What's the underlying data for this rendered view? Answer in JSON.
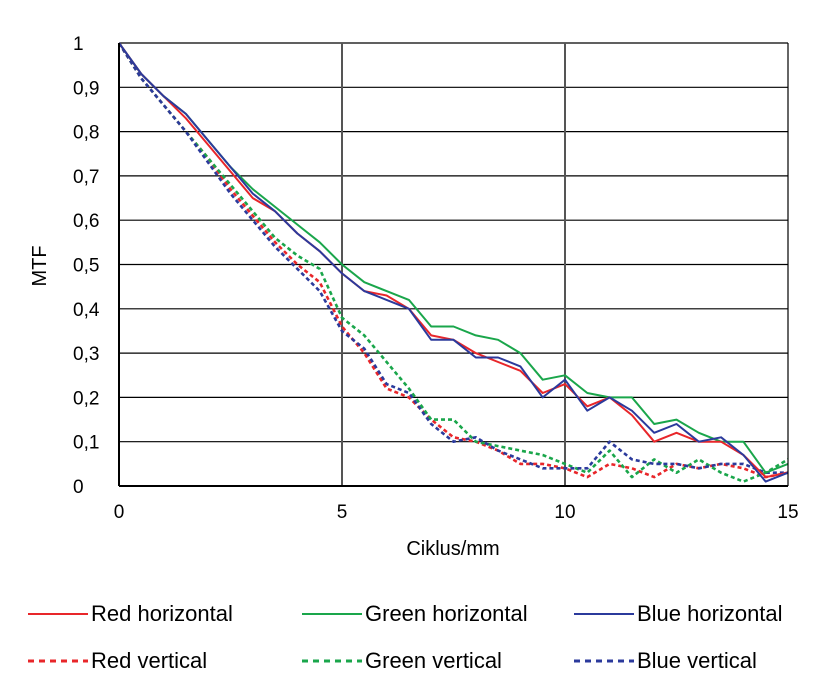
{
  "chart_data": {
    "type": "line",
    "xlabel": "Ciklus/mm",
    "ylabel": "MTF",
    "xlim": [
      0,
      15
    ],
    "ylim": [
      0,
      1
    ],
    "x_ticks": [
      "0",
      "5",
      "10",
      "15"
    ],
    "y_ticks": [
      "0",
      "0,1",
      "0,2",
      "0,3",
      "0,4",
      "0,5",
      "0,6",
      "0,7",
      "0,8",
      "0,9",
      "1"
    ],
    "grid": "horizontal at every 0.1, vertical at 5 and 10",
    "legend_position": "bottom",
    "series": [
      {
        "name": "Red horizontal",
        "color": "#e8262a",
        "dash": "solid",
        "x": [
          0,
          0.5,
          1,
          1.5,
          2,
          2.5,
          3,
          3.5,
          4,
          4.5,
          5,
          5.5,
          6,
          6.5,
          7,
          7.5,
          8,
          8.5,
          9,
          9.5,
          10,
          10.5,
          11,
          11.5,
          12,
          12.5,
          13,
          13.5,
          14,
          14.5,
          15
        ],
        "y": [
          1,
          0.93,
          0.88,
          0.83,
          0.77,
          0.71,
          0.65,
          0.62,
          0.57,
          0.53,
          0.48,
          0.44,
          0.43,
          0.4,
          0.34,
          0.33,
          0.3,
          0.28,
          0.26,
          0.21,
          0.23,
          0.18,
          0.2,
          0.16,
          0.1,
          0.12,
          0.1,
          0.1,
          0.07,
          0.02,
          0.03
        ]
      },
      {
        "name": "Green horizontal",
        "color": "#1aa64b",
        "dash": "solid",
        "x": [
          0,
          0.5,
          1,
          1.5,
          2,
          2.5,
          3,
          3.5,
          4,
          4.5,
          5,
          5.5,
          6,
          6.5,
          7,
          7.5,
          8,
          8.5,
          9,
          9.5,
          10,
          10.5,
          11,
          11.5,
          12,
          12.5,
          13,
          13.5,
          14,
          14.5,
          15
        ],
        "y": [
          1,
          0.93,
          0.88,
          0.84,
          0.78,
          0.72,
          0.67,
          0.63,
          0.59,
          0.55,
          0.5,
          0.46,
          0.44,
          0.42,
          0.36,
          0.36,
          0.34,
          0.33,
          0.3,
          0.24,
          0.25,
          0.21,
          0.2,
          0.2,
          0.14,
          0.15,
          0.12,
          0.1,
          0.1,
          0.03,
          0.05
        ]
      },
      {
        "name": "Blue horizontal",
        "color": "#2b3a9c",
        "dash": "solid",
        "x": [
          0,
          0.5,
          1,
          1.5,
          2,
          2.5,
          3,
          3.5,
          4,
          4.5,
          5,
          5.5,
          6,
          6.5,
          7,
          7.5,
          8,
          8.5,
          9,
          9.5,
          10,
          10.5,
          11,
          11.5,
          12,
          12.5,
          13,
          13.5,
          14,
          14.5,
          15
        ],
        "y": [
          1,
          0.93,
          0.88,
          0.84,
          0.78,
          0.72,
          0.66,
          0.62,
          0.57,
          0.53,
          0.48,
          0.44,
          0.42,
          0.4,
          0.33,
          0.33,
          0.29,
          0.29,
          0.27,
          0.2,
          0.24,
          0.17,
          0.2,
          0.17,
          0.12,
          0.14,
          0.1,
          0.11,
          0.07,
          0.01,
          0.03
        ]
      },
      {
        "name": "Red vertical",
        "color": "#e8262a",
        "dash": "dotted",
        "x": [
          0,
          0.5,
          1,
          1.5,
          2,
          2.5,
          3,
          3.5,
          4,
          4.5,
          5,
          5.5,
          6,
          6.5,
          7,
          7.5,
          8,
          8.5,
          9,
          9.5,
          10,
          10.5,
          11,
          11.5,
          12,
          12.5,
          13,
          13.5,
          14,
          14.5,
          15
        ],
        "y": [
          1,
          0.92,
          0.86,
          0.8,
          0.74,
          0.67,
          0.61,
          0.55,
          0.5,
          0.46,
          0.36,
          0.3,
          0.22,
          0.2,
          0.15,
          0.11,
          0.1,
          0.08,
          0.05,
          0.05,
          0.04,
          0.02,
          0.05,
          0.04,
          0.02,
          0.05,
          0.04,
          0.05,
          0.04,
          0.02,
          0.03
        ]
      },
      {
        "name": "Green vertical",
        "color": "#1aa64b",
        "dash": "dotted",
        "x": [
          0,
          0.5,
          1,
          1.5,
          2,
          2.5,
          3,
          3.5,
          4,
          4.5,
          5,
          5.5,
          6,
          6.5,
          7,
          7.5,
          8,
          8.5,
          9,
          9.5,
          10,
          10.5,
          11,
          11.5,
          12,
          12.5,
          13,
          13.5,
          14,
          14.5,
          15
        ],
        "y": [
          1,
          0.92,
          0.86,
          0.8,
          0.74,
          0.68,
          0.62,
          0.56,
          0.52,
          0.49,
          0.38,
          0.34,
          0.28,
          0.22,
          0.15,
          0.15,
          0.1,
          0.09,
          0.08,
          0.07,
          0.05,
          0.03,
          0.08,
          0.02,
          0.06,
          0.03,
          0.06,
          0.03,
          0.01,
          0.03,
          0.06
        ]
      },
      {
        "name": "Blue vertical",
        "color": "#2b3a9c",
        "dash": "dotted",
        "x": [
          0,
          0.5,
          1,
          1.5,
          2,
          2.5,
          3,
          3.5,
          4,
          4.5,
          5,
          5.5,
          6,
          6.5,
          7,
          7.5,
          8,
          8.5,
          9,
          9.5,
          10,
          10.5,
          11,
          11.5,
          12,
          12.5,
          13,
          13.5,
          14,
          14.5,
          15
        ],
        "y": [
          1,
          0.92,
          0.86,
          0.8,
          0.73,
          0.66,
          0.6,
          0.54,
          0.49,
          0.44,
          0.35,
          0.31,
          0.23,
          0.21,
          0.14,
          0.1,
          0.11,
          0.08,
          0.06,
          0.04,
          0.04,
          0.04,
          0.1,
          0.06,
          0.05,
          0.05,
          0.04,
          0.05,
          0.05,
          0.03,
          0.03
        ]
      }
    ]
  }
}
